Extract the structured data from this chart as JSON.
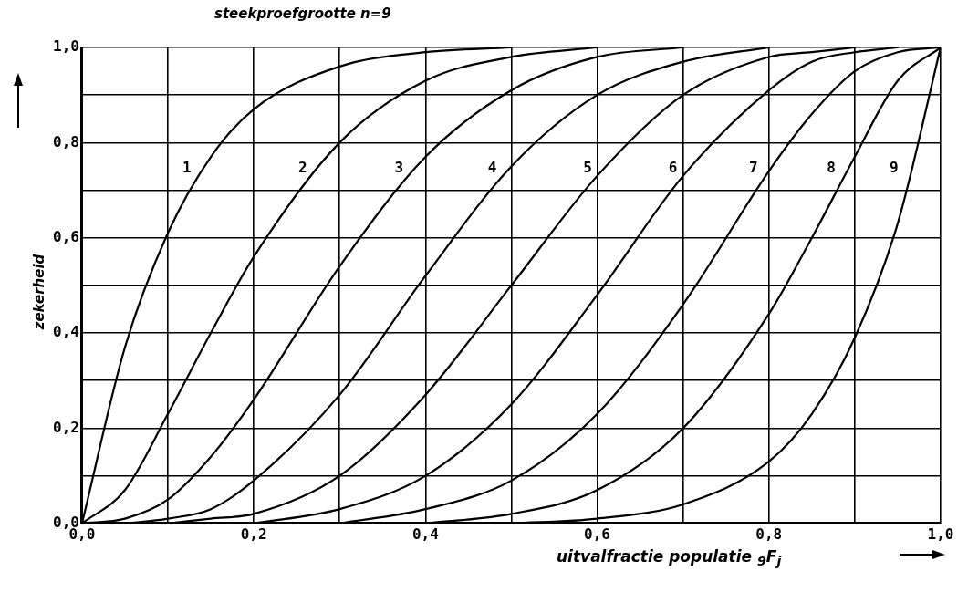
{
  "chart_data": {
    "type": "line",
    "title": "steekproefgrootte n=9",
    "xlabel": "uitvalfractie populatie $_{9}$F$_{j}$",
    "ylabel": "zekerheid",
    "series": [
      {
        "name": "1",
        "color": "#000000",
        "x": [
          0,
          0.05,
          0.1,
          0.15,
          0.2,
          0.3,
          0.4,
          0.5
        ],
        "values": [
          0,
          0.37,
          0.61,
          0.77,
          0.87,
          0.96,
          0.99,
          1
        ]
      },
      {
        "name": "2",
        "color": "#000000",
        "x": [
          0,
          0.05,
          0.1,
          0.15,
          0.2,
          0.3,
          0.4,
          0.5,
          0.6
        ],
        "values": [
          0,
          0.07,
          0.23,
          0.4,
          0.56,
          0.8,
          0.93,
          0.98,
          1
        ]
      },
      {
        "name": "3",
        "color": "#000000",
        "x": [
          0,
          0.05,
          0.1,
          0.15,
          0.2,
          0.3,
          0.4,
          0.5,
          0.6,
          0.7
        ],
        "values": [
          0,
          0.01,
          0.05,
          0.14,
          0.26,
          0.54,
          0.77,
          0.91,
          0.98,
          1
        ]
      },
      {
        "name": "4",
        "color": "#000000",
        "x": [
          0.05,
          0.1,
          0.15,
          0.2,
          0.3,
          0.4,
          0.5,
          0.6,
          0.7,
          0.8
        ],
        "values": [
          0,
          0.01,
          0.03,
          0.09,
          0.27,
          0.52,
          0.75,
          0.9,
          0.97,
          1
        ]
      },
      {
        "name": "5",
        "color": "#000000",
        "x": [
          0.1,
          0.15,
          0.2,
          0.3,
          0.4,
          0.5,
          0.6,
          0.7,
          0.8,
          0.85,
          0.9
        ],
        "values": [
          0,
          0.01,
          0.02,
          0.1,
          0.27,
          0.5,
          0.73,
          0.9,
          0.98,
          0.99,
          1
        ]
      },
      {
        "name": "6",
        "color": "#000000",
        "x": [
          0.2,
          0.3,
          0.4,
          0.5,
          0.6,
          0.7,
          0.8,
          0.85,
          0.9,
          0.95
        ],
        "values": [
          0,
          0.03,
          0.1,
          0.25,
          0.48,
          0.73,
          0.91,
          0.97,
          0.99,
          1
        ]
      },
      {
        "name": "7",
        "color": "#000000",
        "x": [
          0.3,
          0.4,
          0.5,
          0.6,
          0.7,
          0.8,
          0.85,
          0.9,
          0.95,
          1
        ],
        "values": [
          0,
          0.03,
          0.09,
          0.23,
          0.46,
          0.74,
          0.86,
          0.95,
          0.99,
          1
        ]
      },
      {
        "name": "8",
        "color": "#000000",
        "x": [
          0.4,
          0.5,
          0.6,
          0.7,
          0.8,
          0.85,
          0.9,
          0.95,
          1
        ],
        "values": [
          0,
          0.02,
          0.07,
          0.2,
          0.44,
          0.6,
          0.77,
          0.93,
          1
        ]
      },
      {
        "name": "9",
        "color": "#000000",
        "x": [
          0.5,
          0.6,
          0.7,
          0.8,
          0.85,
          0.9,
          0.95,
          1
        ],
        "values": [
          0,
          0.01,
          0.04,
          0.13,
          0.23,
          0.39,
          0.63,
          1
        ]
      }
    ],
    "xlim": [
      0,
      1
    ],
    "ylim": [
      0,
      1
    ],
    "xticks": [
      {
        "value": 0,
        "label": "0,0"
      },
      {
        "value": 0.1,
        "label": null
      },
      {
        "value": 0.2,
        "label": "0,2"
      },
      {
        "value": 0.3,
        "label": null
      },
      {
        "value": 0.4,
        "label": "0,4"
      },
      {
        "value": 0.5,
        "label": null
      },
      {
        "value": 0.6,
        "label": "0,6"
      },
      {
        "value": 0.7,
        "label": null
      },
      {
        "value": 0.8,
        "label": "0,8"
      },
      {
        "value": 0.9,
        "label": null
      },
      {
        "value": 1,
        "label": "1,0"
      }
    ],
    "yticks": [
      {
        "value": 0,
        "label": "0,0"
      },
      {
        "value": 0.1,
        "label": null
      },
      {
        "value": 0.2,
        "label": "0,2"
      },
      {
        "value": 0.3,
        "label": null
      },
      {
        "value": 0.4,
        "label": "0,4"
      },
      {
        "value": 0.5,
        "label": null
      },
      {
        "value": 0.6,
        "label": "0,6"
      },
      {
        "value": 0.7,
        "label": null
      },
      {
        "value": 0.8,
        "label": "0,8"
      },
      {
        "value": 0.9,
        "label": null
      },
      {
        "value": 1,
        "label": "1,0"
      }
    ],
    "grid": true,
    "legend": false,
    "marker": "none",
    "line_style": "solid"
  }
}
